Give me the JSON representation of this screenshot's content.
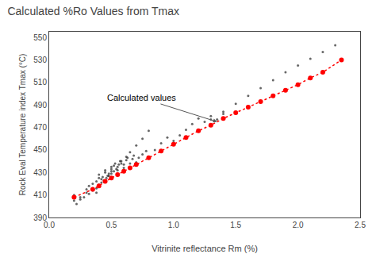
{
  "chart_data": {
    "type": "scatter",
    "title": "Calculated %Ro Values from Tmax",
    "xlabel": "Vitrinite reflectance Rm (%)",
    "ylabel": "Rock Eval Temperature index Tmax (°C)",
    "xlim": [
      0,
      2.5
    ],
    "ylim": [
      390,
      555
    ],
    "xticks": [
      {
        "value": 0,
        "label": "0.0"
      },
      0.5,
      {
        "value": 1.0,
        "label": "1.0"
      },
      1.5,
      {
        "value": 2.0,
        "label": "2.0"
      },
      2.5
    ],
    "yticks": [
      390,
      410,
      430,
      450,
      470,
      490,
      510,
      530,
      550
    ],
    "grid": false,
    "annotations": [
      {
        "text": "Calculated values",
        "x": 1.35,
        "y": 475
      }
    ],
    "series": [
      {
        "type": "scatter",
        "color": "#000000",
        "marker": "circle",
        "x": [
          0.2,
          0.25,
          0.3,
          0.3,
          0.32,
          0.35,
          0.35,
          0.38,
          0.4,
          0.4,
          0.42,
          0.43,
          0.45,
          0.45,
          0.47,
          0.48,
          0.5,
          0.5,
          0.5,
          0.52,
          0.53,
          0.55,
          0.55,
          0.57,
          0.58,
          0.6,
          0.6,
          0.62,
          0.63,
          0.65,
          0.67,
          0.68,
          0.7,
          0.72,
          0.75,
          0.78,
          0.8,
          0.85,
          0.9,
          0.95,
          1.0,
          1.05,
          1.1,
          1.15,
          1.2,
          1.25,
          1.3,
          1.35,
          1.4,
          0.2,
          0.22,
          0.25,
          0.28,
          0.32,
          0.35,
          0.38,
          0.38,
          0.4,
          0.42,
          0.44,
          0.46,
          0.48,
          0.5,
          0.52,
          0.54,
          0.56,
          0.58,
          0.62,
          0.65,
          0.7,
          0.75,
          0.8,
          1.3,
          1.4,
          1.5,
          1.6,
          1.7,
          1.8,
          1.9,
          2.0,
          2.1,
          2.2,
          2.3
        ],
        "values": [
          410,
          408,
          412,
          415,
          418,
          420,
          416,
          422,
          425,
          428,
          424,
          426,
          430,
          432,
          427,
          429,
          433,
          435,
          431,
          436,
          438,
          432,
          435,
          440,
          438,
          434,
          437,
          441,
          443,
          438,
          442,
          445,
          439,
          443,
          446,
          449,
          444,
          450,
          456,
          461,
          458,
          463,
          468,
          473,
          478,
          475,
          480,
          477,
          482,
          405,
          402,
          406,
          408,
          411,
          414,
          416,
          412,
          419,
          421,
          423,
          425,
          427,
          429,
          431,
          433,
          437,
          440,
          444,
          448,
          454,
          460,
          467,
          477,
          484,
          491,
          498,
          505,
          512,
          519,
          525,
          531,
          537,
          543
        ]
      },
      {
        "type": "line",
        "color": "#ff0000",
        "marker": "circle",
        "line_style": "dotted",
        "x": [
          0.2,
          0.35,
          0.4,
          0.45,
          0.5,
          0.55,
          0.6,
          0.65,
          0.7,
          0.8,
          0.9,
          1.0,
          1.1,
          1.2,
          1.3,
          1.4,
          1.5,
          1.6,
          1.7,
          1.8,
          1.9,
          2.0,
          2.1,
          2.2,
          2.35
        ],
        "values": [
          408,
          415,
          418,
          422,
          425,
          428,
          431,
          434,
          437,
          443,
          449,
          455,
          461,
          467,
          472,
          478,
          483,
          488,
          493,
          498,
          503,
          508,
          514,
          519,
          530
        ]
      }
    ]
  }
}
